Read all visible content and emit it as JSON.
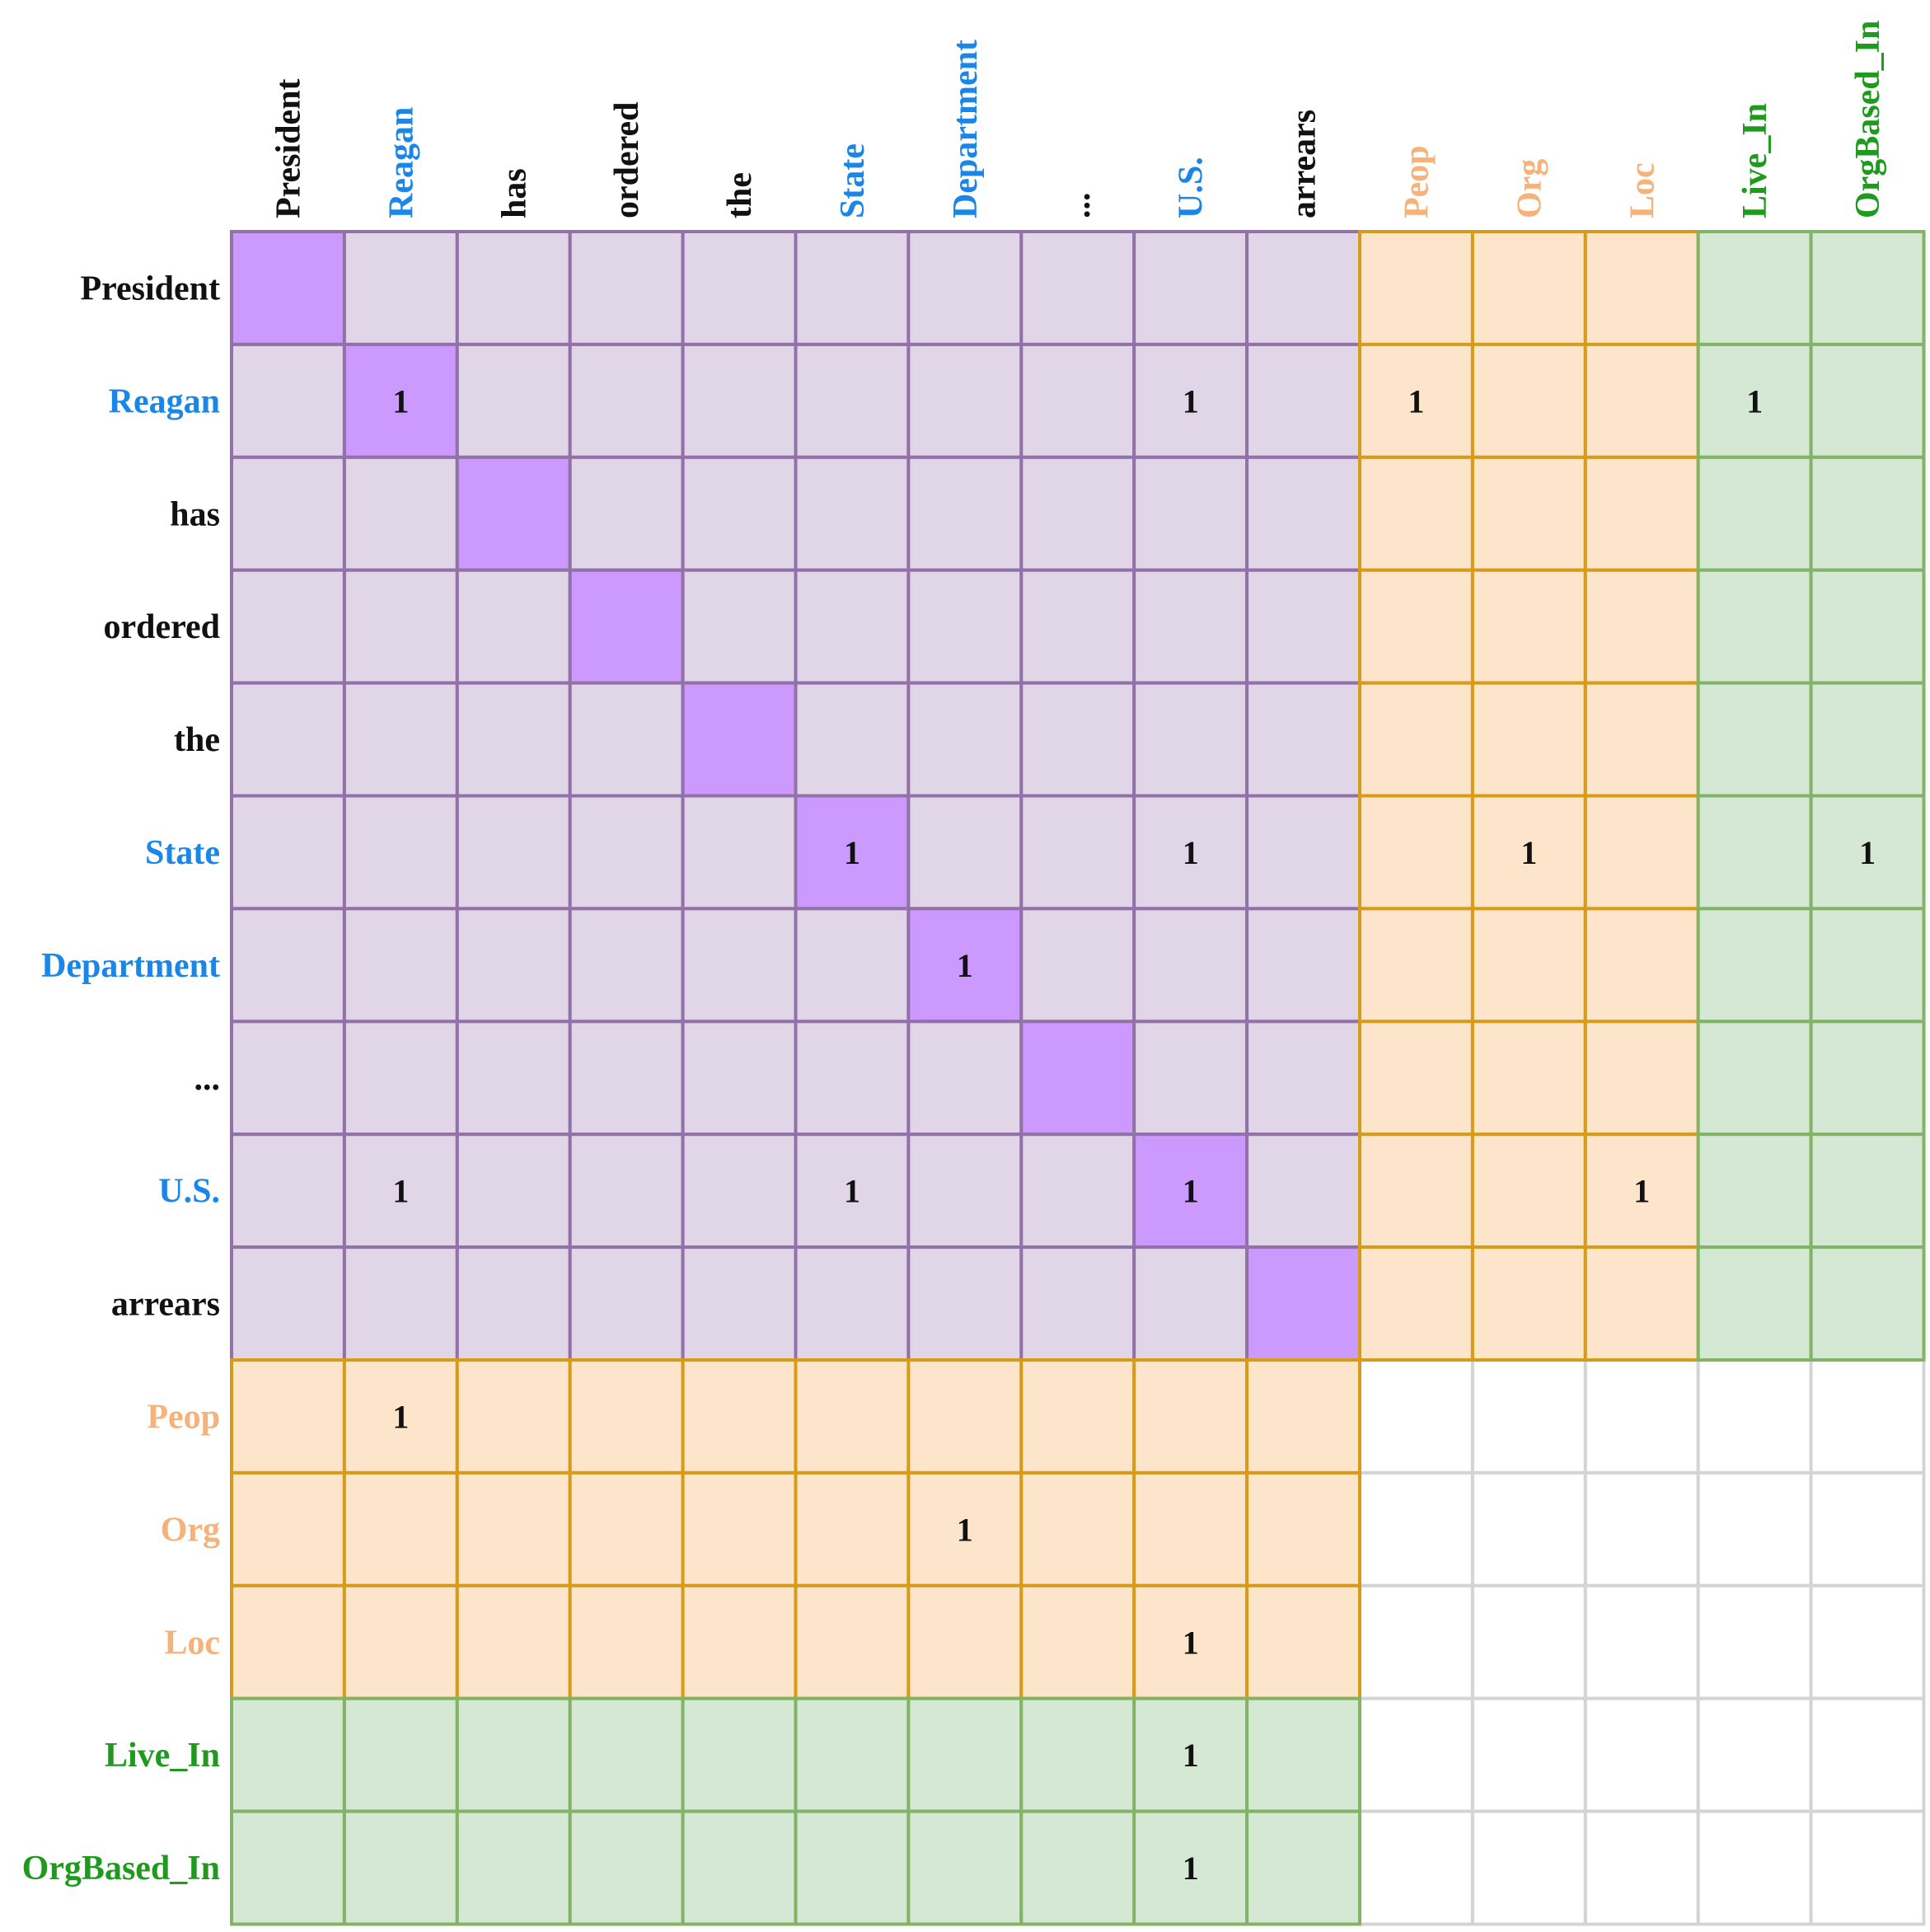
{
  "tokens": [
    {
      "text": "President",
      "kind": "word"
    },
    {
      "text": "Reagan",
      "kind": "entity"
    },
    {
      "text": "has",
      "kind": "word"
    },
    {
      "text": "ordered",
      "kind": "word"
    },
    {
      "text": "the",
      "kind": "word"
    },
    {
      "text": "State",
      "kind": "entity"
    },
    {
      "text": "Department",
      "kind": "entity"
    },
    {
      "text": "...",
      "kind": "word"
    },
    {
      "text": "U.S.",
      "kind": "entity"
    },
    {
      "text": "arrears",
      "kind": "word"
    },
    {
      "text": "Peop",
      "kind": "entity-type"
    },
    {
      "text": "Org",
      "kind": "entity-type"
    },
    {
      "text": "Loc",
      "kind": "entity-type"
    },
    {
      "text": "Live_In",
      "kind": "relation"
    },
    {
      "text": "OrgBased_In",
      "kind": "relation"
    }
  ],
  "cells": [
    {
      "row": 1,
      "col": 1,
      "value": "1"
    },
    {
      "row": 1,
      "col": 8,
      "value": "1"
    },
    {
      "row": 1,
      "col": 10,
      "value": "1"
    },
    {
      "row": 1,
      "col": 13,
      "value": "1"
    },
    {
      "row": 5,
      "col": 5,
      "value": "1"
    },
    {
      "row": 5,
      "col": 8,
      "value": "1"
    },
    {
      "row": 5,
      "col": 11,
      "value": "1"
    },
    {
      "row": 5,
      "col": 14,
      "value": "1"
    },
    {
      "row": 6,
      "col": 6,
      "value": "1"
    },
    {
      "row": 8,
      "col": 1,
      "value": "1"
    },
    {
      "row": 8,
      "col": 5,
      "value": "1"
    },
    {
      "row": 8,
      "col": 8,
      "value": "1"
    },
    {
      "row": 8,
      "col": 12,
      "value": "1"
    },
    {
      "row": 10,
      "col": 1,
      "value": "1"
    },
    {
      "row": 11,
      "col": 6,
      "value": "1"
    },
    {
      "row": 12,
      "col": 8,
      "value": "1"
    },
    {
      "row": 13,
      "col": 8,
      "value": "1"
    },
    {
      "row": 14,
      "col": 8,
      "value": "1"
    }
  ],
  "colors": {
    "word_text": "#111111",
    "entity_text": "#1a86e8",
    "entity_type_text": "#f5b27a",
    "relation_text": "#1f9a1f",
    "token_fill": "#e1d5e8",
    "token_stroke": "#9271a8",
    "diagonal_fill": "#cc99ff",
    "type_fill": "#fde5cc",
    "type_stroke": "#d79b1a",
    "relation_fill": "#d5e8d4",
    "relation_stroke": "#82b366",
    "empty_fill": "#ffffff",
    "empty_stroke": "#d4d4d4"
  }
}
